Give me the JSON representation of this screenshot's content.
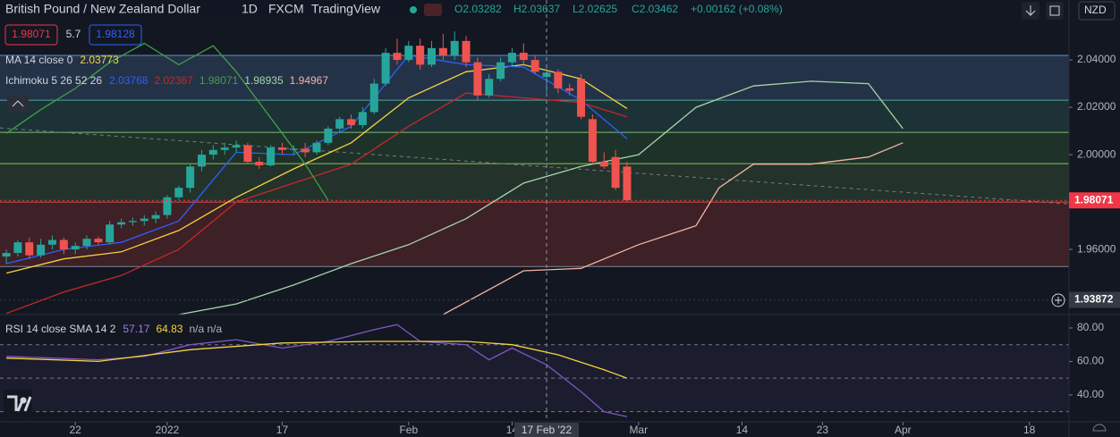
{
  "header": {
    "symbol": "British Pound / New Zealand Dollar",
    "interval": "1D",
    "source": "FXCM",
    "brand": "TradingView",
    "ohlc": [
      "O2.03282",
      "H2.03637",
      "L2.02625",
      "C2.03462"
    ],
    "change": "+0.00162 (+0.08%)",
    "sell": "1.98071",
    "spread": "5.7",
    "buy": "1.98128",
    "currency": "NZD"
  },
  "chart_data": [
    {
      "type": "candlestick",
      "xlim": [
        -0.55,
        92.45
      ],
      "ylim": [
        1.9325,
        2.0653
      ],
      "xticks": [
        {
          "value": 6,
          "label": "22"
        },
        {
          "value": 14,
          "label": "2022"
        },
        {
          "value": 24,
          "label": "17"
        },
        {
          "value": 35,
          "label": "Feb"
        },
        {
          "value": 44,
          "label": "14"
        },
        {
          "value": 55,
          "label": "Mar"
        },
        {
          "value": 64,
          "label": "14"
        },
        {
          "value": 71,
          "label": "23"
        },
        {
          "value": 78,
          "label": "Apr"
        },
        {
          "value": 89,
          "label": "18"
        }
      ],
      "crosshair": {
        "value": 47,
        "label": "17 Feb '22"
      },
      "yticks": [
        {
          "value": 2.04,
          "label": "2.04000"
        },
        {
          "value": 2.02,
          "label": "2.02000"
        },
        {
          "value": 2.0,
          "label": "2.00000"
        },
        {
          "value": 1.96,
          "label": "1.96000"
        }
      ],
      "price_tags": [
        {
          "value": 1.98071,
          "label": "1.98071",
          "color": "#f23645"
        },
        {
          "value": 1.93872,
          "label": "1.93872",
          "color": "#363a45"
        }
      ],
      "levels": [
        {
          "value": 2.0419,
          "color": "#5d8fc7"
        },
        {
          "value": 2.023,
          "color": "#4ea89a"
        },
        {
          "value": 2.0094,
          "color": "#7dbf72"
        },
        {
          "value": 1.9962,
          "color": "#8cbf5a"
        },
        {
          "value": 1.98,
          "color": "#e04848"
        },
        {
          "value": 1.9528,
          "color": "#7d8594"
        }
      ],
      "bands": [
        "#293a52",
        "#1f3a3c",
        "#22392c",
        "#283a2d",
        "#4a2329"
      ],
      "trendline": {
        "x": [
          -0.55,
          92.45
        ],
        "values": [
          2.0113,
          1.9792
        ],
        "color": "#787b86"
      },
      "up_color": "#26a69a",
      "down_color": "#ef5350",
      "open": [
        1.957,
        1.9585,
        1.963,
        1.9575,
        1.962,
        1.964,
        1.96,
        1.9615,
        1.9645,
        1.963,
        1.9705,
        1.9715,
        1.972,
        1.973,
        1.9745,
        1.982,
        1.986,
        1.995,
        2.0,
        2.002,
        2.003,
        2.004,
        1.997,
        1.9955,
        2.003,
        2.002,
        2.0025,
        2.001,
        2.005,
        2.011,
        2.015,
        2.0125,
        2.018,
        2.03,
        2.043,
        2.04,
        2.046,
        2.038,
        2.045,
        2.042,
        2.048,
        2.039,
        2.025,
        2.032,
        2.039,
        2.043,
        2.04,
        2.03282,
        2.035,
        2.028,
        2.032,
        2.015,
        1.997,
        1.999,
        1.995
      ],
      "high": [
        1.96,
        1.964,
        1.965,
        1.9645,
        1.966,
        1.965,
        1.963,
        1.966,
        1.9655,
        1.972,
        1.973,
        1.9735,
        1.9745,
        1.976,
        1.983,
        1.987,
        1.996,
        2.002,
        2.004,
        2.005,
        2.006,
        2.005,
        1.999,
        2.004,
        2.005,
        2.004,
        2.005,
        2.006,
        2.012,
        2.016,
        2.017,
        2.02,
        2.032,
        2.045,
        2.049,
        2.048,
        2.049,
        2.048,
        2.051,
        2.052,
        2.05,
        2.041,
        2.034,
        2.041,
        2.045,
        2.047,
        2.042,
        2.03637,
        2.036,
        2.03,
        2.034,
        2.017,
        2.001,
        2.002,
        1.997
      ],
      "low": [
        1.954,
        1.957,
        1.956,
        1.9565,
        1.96,
        1.958,
        1.958,
        1.96,
        1.962,
        1.962,
        1.969,
        1.97,
        1.97,
        1.971,
        1.973,
        1.981,
        1.984,
        1.993,
        1.998,
        2.0,
        2.001,
        1.996,
        1.994,
        1.995,
        2.0,
        2.0,
        1.999,
        2.0,
        2.004,
        2.009,
        2.011,
        2.011,
        2.017,
        2.029,
        2.038,
        2.039,
        2.036,
        2.037,
        2.04,
        2.04,
        2.037,
        2.023,
        2.024,
        2.031,
        2.037,
        2.038,
        2.034,
        2.02625,
        2.026,
        2.025,
        2.015,
        1.996,
        1.994,
        1.985,
        1.98
      ],
      "close": [
        1.9585,
        1.963,
        1.9575,
        1.962,
        1.964,
        1.96,
        1.9615,
        1.9645,
        1.963,
        1.9705,
        1.9715,
        1.972,
        1.973,
        1.9745,
        1.982,
        1.986,
        1.995,
        2.0,
        2.002,
        2.003,
        2.004,
        1.997,
        1.9955,
        2.003,
        2.002,
        2.0025,
        2.001,
        2.005,
        2.011,
        2.015,
        2.0125,
        2.018,
        2.03,
        2.043,
        2.04,
        2.046,
        2.038,
        2.045,
        2.042,
        2.048,
        2.039,
        2.025,
        2.032,
        2.039,
        2.043,
        2.04,
        2.035,
        2.03462,
        2.028,
        2.027,
        2.016,
        1.997,
        1.995,
        1.986,
        1.98071
      ],
      "series": [
        {
          "color": "#f7d23e",
          "x": [
            0,
            5,
            10,
            15,
            20,
            25,
            30,
            35,
            40,
            45,
            50,
            54
          ],
          "values": [
            1.95,
            1.956,
            1.959,
            1.968,
            1.982,
            1.994,
            2.005,
            2.024,
            2.035,
            2.038,
            2.032,
            2.0195
          ]
        },
        {
          "color": "#2962ff",
          "x": [
            0,
            5,
            10,
            15,
            20,
            25,
            30,
            35,
            40,
            45,
            50,
            54
          ],
          "values": [
            1.954,
            1.96,
            1.963,
            1.972,
            2.001,
            2.0,
            2.012,
            2.042,
            2.038,
            2.037,
            2.023,
            2.0068
          ]
        },
        {
          "color": "#c62828",
          "x": [
            0,
            5,
            10,
            15,
            20,
            25,
            30,
            35,
            40,
            45,
            50,
            54
          ],
          "values": [
            1.933,
            1.942,
            1.949,
            1.96,
            1.98,
            1.988,
            1.996,
            2.012,
            2.026,
            2.024,
            2.022,
            2.016
          ]
        },
        {
          "color": "#43a047",
          "x": [
            0,
            3,
            6,
            9,
            12,
            15,
            18,
            20,
            22,
            24,
            26,
            28
          ],
          "values": [
            2.009,
            2.019,
            2.028,
            2.039,
            2.047,
            2.038,
            2.046,
            2.035,
            2.022,
            2.009,
            1.996,
            1.98071
          ]
        },
        {
          "color": "#a5d6a7",
          "x": [
            15,
            20,
            25,
            30,
            35,
            40,
            45,
            50,
            55,
            60,
            65,
            70,
            75,
            78
          ],
          "values": [
            1.9325,
            1.937,
            1.945,
            1.954,
            1.962,
            1.973,
            1.988,
            1.995,
            2.0,
            2.02,
            2.029,
            2.031,
            2.03,
            2.011
          ]
        },
        {
          "color": "#f4b4a0",
          "x": [
            38,
            45,
            50,
            55,
            60,
            62,
            65,
            70,
            75,
            78
          ],
          "values": [
            1.9325,
            1.951,
            1.952,
            1.962,
            1.97,
            1.986,
            1.996,
            1.996,
            1.999,
            2.005
          ]
        }
      ],
      "legend": [
        {
          "label": "MA 14 close 0",
          "values": [
            {
              "text": "2.03773",
              "color": "#f7d23e"
            }
          ]
        },
        {
          "label": "Ichimoku 5 26 52 26",
          "values": [
            {
              "text": "2.03768",
              "color": "#2962ff"
            },
            {
              "text": "2.02367",
              "color": "#c62828"
            },
            {
              "text": "1.98071",
              "color": "#43a047"
            },
            {
              "text": "1.98935",
              "color": "#a5d6a7"
            },
            {
              "text": "1.94967",
              "color": "#f4b4a0"
            }
          ]
        }
      ]
    },
    {
      "type": "line",
      "ylim": [
        25,
        88
      ],
      "yticks": [
        {
          "value": 80,
          "label": "80.00"
        },
        {
          "value": 60,
          "label": "60.00"
        },
        {
          "value": 40,
          "label": "40.00"
        }
      ],
      "bands": [
        70,
        50,
        30
      ],
      "band_color": "#7e57c2",
      "legend": {
        "label": "RSI 14 close SMA 14 2",
        "values": [
          {
            "text": "57.17",
            "color": "#9c7fe0"
          },
          {
            "text": "64.83",
            "color": "#f7d23e"
          },
          {
            "text": "n/a n/a",
            "color": "#b2b5be"
          }
        ]
      },
      "series": [
        {
          "color": "#7e57c2",
          "x": [
            0,
            4,
            8,
            12,
            16,
            20,
            24,
            28,
            32,
            34,
            36,
            40,
            42,
            44,
            47,
            50,
            52,
            54
          ],
          "values": [
            63,
            62,
            61,
            63,
            70,
            73,
            68,
            72,
            79,
            82,
            72,
            70,
            61,
            68,
            58,
            42,
            30,
            27
          ]
        },
        {
          "color": "#f7d23e",
          "x": [
            0,
            8,
            16,
            24,
            32,
            40,
            44,
            48,
            52,
            54
          ],
          "values": [
            62,
            60,
            67,
            71,
            72,
            72,
            70,
            64,
            55,
            50
          ]
        }
      ]
    }
  ]
}
